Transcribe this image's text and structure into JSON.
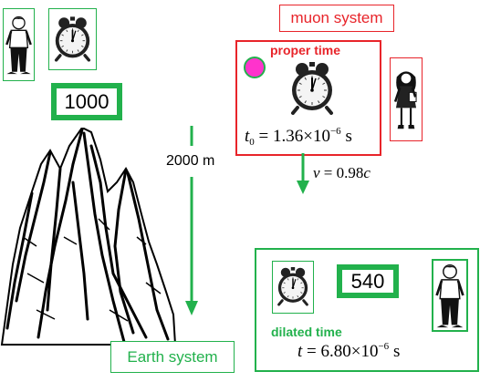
{
  "colors": {
    "green": "#22b14c",
    "red": "#e8242a",
    "muon": "#ff33cc"
  },
  "earth": {
    "counter": "1000",
    "distance": "2000 m",
    "system_label": "Earth system"
  },
  "muon": {
    "system_label": "muon system",
    "proper_time_label": "proper time",
    "proper_time_formula": {
      "symbol": "t",
      "subscript": "0",
      "equals": "=",
      "mantissa": "1.36",
      "times": "×10",
      "exponent": "−6",
      "unit": "s"
    },
    "velocity": {
      "symbol": "v",
      "equals": " = 0.98",
      "c": "c"
    }
  },
  "earth_frame": {
    "counter": "540",
    "dilated_time_label": "dilated time",
    "dilated_time_formula": {
      "symbol": "t",
      "equals": "=",
      "mantissa": "6.80",
      "times": "×10",
      "exponent": "−6",
      "unit": "s"
    }
  },
  "icons": [
    "observer-boy-icon",
    "alarm-clock-icon",
    "observer-girl-icon",
    "mountain-icon",
    "muon-particle-icon"
  ]
}
